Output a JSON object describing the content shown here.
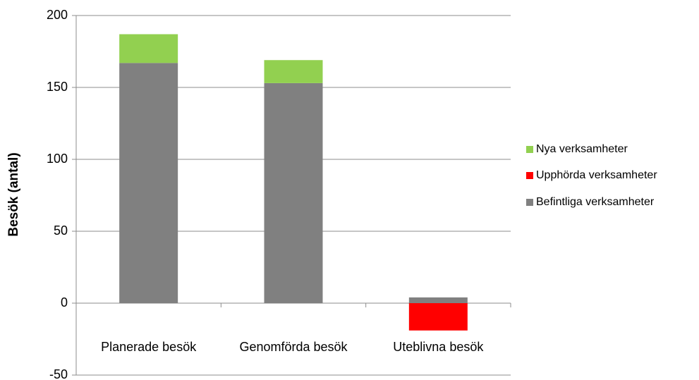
{
  "chart_data": {
    "type": "bar",
    "stacked": true,
    "y_label": "Besök (antal)",
    "categories": [
      "Planerade besök",
      "Genomförda besök",
      "Uteblivna besök"
    ],
    "series": [
      {
        "name": "Befintliga verksamheter",
        "color": "#808080",
        "values": [
          167,
          153,
          4
        ]
      },
      {
        "name": "Upphörda verksamheter",
        "color": "#ff0000",
        "values": [
          0,
          0,
          -19
        ]
      },
      {
        "name": "Nya verksamheter",
        "color": "#92d050",
        "values": [
          20,
          16,
          0
        ]
      }
    ],
    "ylim": [
      -50,
      200
    ],
    "yticks": [
      -50,
      0,
      50,
      100,
      150,
      200
    ],
    "grid": true,
    "legend": "right"
  }
}
